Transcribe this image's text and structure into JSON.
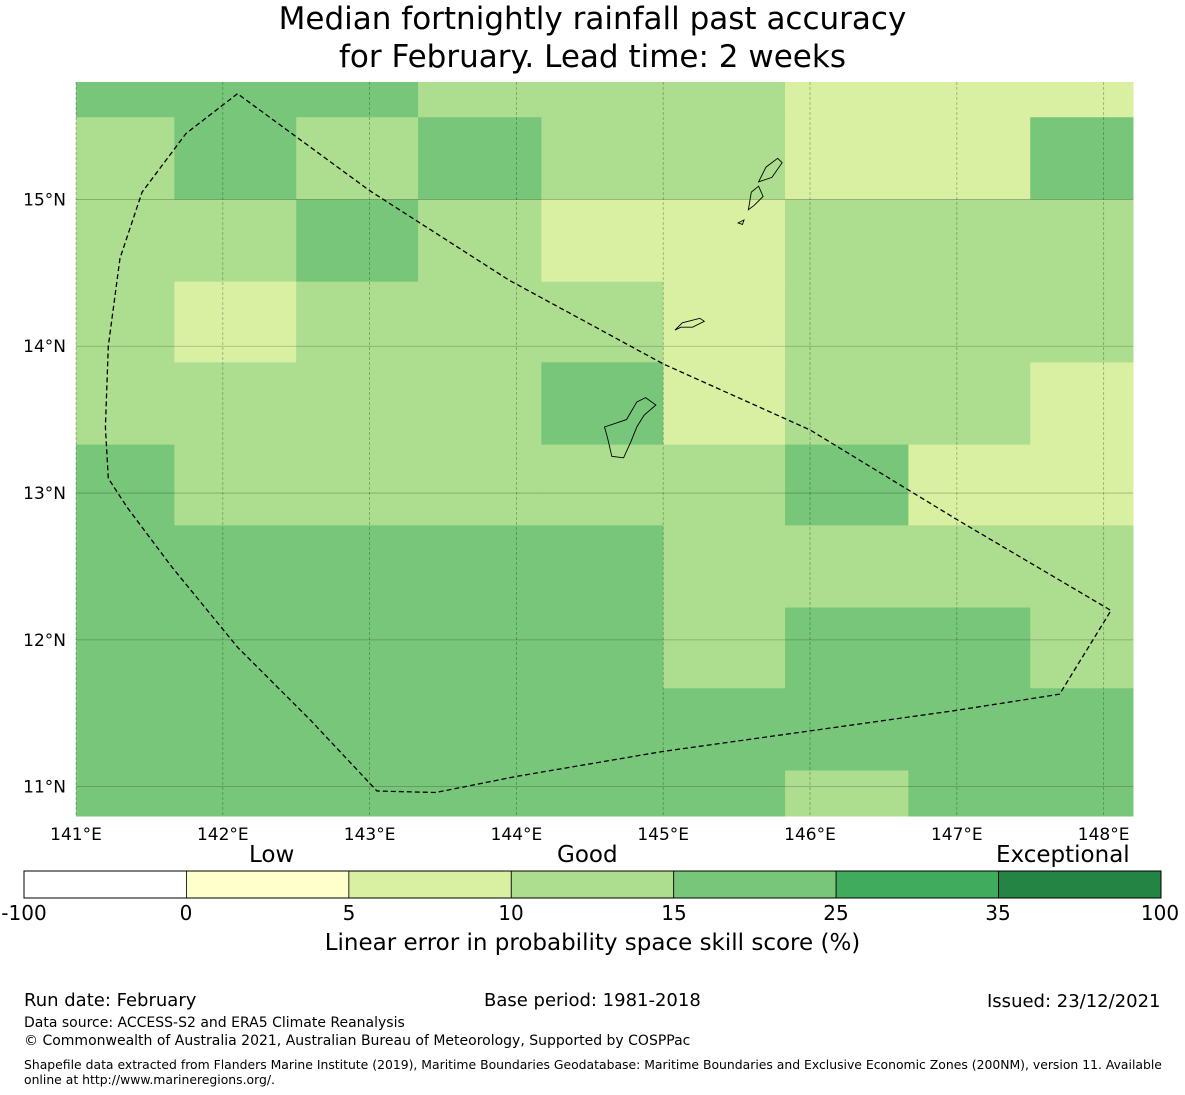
{
  "title": {
    "line1": "Median fortnightly rainfall past accuracy",
    "line2": "for February. Lead time: 2 weeks"
  },
  "map": {
    "lon_range": [
      141.0,
      148.2
    ],
    "lat_range": [
      10.8,
      15.8
    ],
    "lon_ticks": [
      141,
      142,
      143,
      144,
      145,
      146,
      147,
      148
    ],
    "lon_tick_labels": [
      "141°E",
      "142°E",
      "143°E",
      "144°E",
      "145°E",
      "146°E",
      "147°E",
      "148°E"
    ],
    "lat_ticks": [
      11,
      12,
      13,
      14,
      15
    ],
    "lat_tick_labels": [
      "11°N",
      "12°N",
      "13°N",
      "14°N",
      "15°N"
    ],
    "grid_lon_edges": [
      141.0,
      141.67,
      142.5,
      143.33,
      144.17,
      145.0,
      145.83,
      146.67,
      147.5,
      148.2
    ],
    "grid_lat_edges": [
      15.8,
      15.56,
      15.0,
      14.44,
      13.89,
      13.33,
      12.78,
      12.22,
      11.67,
      11.11,
      10.8
    ],
    "cell_categories": [
      [
        3,
        3,
        3,
        2,
        2,
        2,
        1,
        1,
        1
      ],
      [
        2,
        3,
        2,
        3,
        2,
        2,
        1,
        1,
        3
      ],
      [
        2,
        2,
        3,
        2,
        1,
        1,
        2,
        2,
        2
      ],
      [
        2,
        1,
        2,
        2,
        2,
        1,
        2,
        2,
        2
      ],
      [
        2,
        2,
        2,
        2,
        3,
        1,
        2,
        2,
        1
      ],
      [
        3,
        2,
        2,
        2,
        2,
        2,
        3,
        1,
        1
      ],
      [
        3,
        3,
        3,
        3,
        3,
        2,
        2,
        2,
        2
      ],
      [
        3,
        3,
        3,
        3,
        3,
        2,
        3,
        3,
        2
      ],
      [
        3,
        3,
        3,
        3,
        3,
        3,
        3,
        3,
        3
      ],
      [
        3,
        3,
        3,
        3,
        3,
        3,
        2,
        3,
        3
      ]
    ],
    "boundary_polygon": [
      [
        142.1,
        15.72
      ],
      [
        141.75,
        15.45
      ],
      [
        141.45,
        15.05
      ],
      [
        141.3,
        14.6
      ],
      [
        141.22,
        14.0
      ],
      [
        141.2,
        13.45
      ],
      [
        141.22,
        13.1
      ],
      [
        141.35,
        12.9
      ],
      [
        141.65,
        12.5
      ],
      [
        142.1,
        11.95
      ],
      [
        142.6,
        11.45
      ],
      [
        143.05,
        10.97
      ],
      [
        143.45,
        10.96
      ],
      [
        144.0,
        11.07
      ],
      [
        145.0,
        11.24
      ],
      [
        146.0,
        11.38
      ],
      [
        147.0,
        11.52
      ],
      [
        147.7,
        11.63
      ],
      [
        148.05,
        12.2
      ],
      [
        147.0,
        12.82
      ],
      [
        146.0,
        13.43
      ],
      [
        145.0,
        13.88
      ],
      [
        143.95,
        14.45
      ],
      [
        143.0,
        15.06
      ],
      [
        142.1,
        15.72
      ]
    ],
    "islands": [
      [
        [
          144.65,
          13.25
        ],
        [
          144.62,
          13.38
        ],
        [
          144.6,
          13.45
        ],
        [
          144.75,
          13.5
        ],
        [
          144.82,
          13.62
        ],
        [
          144.88,
          13.65
        ],
        [
          144.95,
          13.6
        ],
        [
          144.87,
          13.53
        ],
        [
          144.82,
          13.45
        ],
        [
          144.78,
          13.35
        ],
        [
          144.73,
          13.24
        ],
        [
          144.65,
          13.25
        ]
      ],
      [
        [
          145.08,
          14.11
        ],
        [
          145.13,
          14.16
        ],
        [
          145.25,
          14.19
        ],
        [
          145.28,
          14.17
        ],
        [
          145.2,
          14.13
        ],
        [
          145.12,
          14.13
        ],
        [
          145.08,
          14.11
        ]
      ],
      [
        [
          145.58,
          14.93
        ],
        [
          145.6,
          15.05
        ],
        [
          145.65,
          15.09
        ],
        [
          145.68,
          15.02
        ],
        [
          145.62,
          14.96
        ],
        [
          145.58,
          14.93
        ]
      ],
      [
        [
          145.65,
          15.12
        ],
        [
          145.7,
          15.22
        ],
        [
          145.78,
          15.28
        ],
        [
          145.81,
          15.25
        ],
        [
          145.74,
          15.15
        ],
        [
          145.65,
          15.12
        ]
      ],
      [
        [
          145.51,
          14.84
        ],
        [
          145.55,
          14.86
        ],
        [
          145.54,
          14.83
        ],
        [
          145.51,
          14.84
        ]
      ]
    ]
  },
  "colorbar": {
    "categories": [
      {
        "label": "Low"
      },
      {
        "label": "Good"
      },
      {
        "label": "Exceptional"
      }
    ],
    "bins": [
      {
        "from": -100,
        "to": 0,
        "color": "#ffffff"
      },
      {
        "from": 0,
        "to": 5,
        "color": "#ffffcc"
      },
      {
        "from": 5,
        "to": 10,
        "color": "#d9f0a3"
      },
      {
        "from": 10,
        "to": 15,
        "color": "#addd8e"
      },
      {
        "from": 15,
        "to": 25,
        "color": "#78c679"
      },
      {
        "from": 25,
        "to": 35,
        "color": "#41ab5d"
      },
      {
        "from": 35,
        "to": 100,
        "color": "#238443"
      }
    ],
    "tick_labels": [
      "-100",
      "0",
      "5",
      "10",
      "15",
      "25",
      "35",
      "100"
    ],
    "label": "Linear error in probability space skill score (%)",
    "category_colors": [
      "#d9f0a3",
      "#addd8e",
      "#78c679"
    ]
  },
  "footer": {
    "run_date": "Run date: February",
    "base_period": "Base period: 1981-2018",
    "issued": "Issued: 23/12/2021",
    "data_source": "Data source: ACCESS-S2 and ERA5 Climate Reanalysis",
    "copyright": "© Commonwealth of Australia 2021, Australian Bureau of Meteorology, Supported by COSPPac",
    "attribution": "Shapefile data extracted from Flanders Marine Institute (2019), Maritime Boundaries Geodatabase: Maritime Boundaries and Exclusive Economic Zones (200NM), version 11. Available online at http://www.marineregions.org/."
  }
}
